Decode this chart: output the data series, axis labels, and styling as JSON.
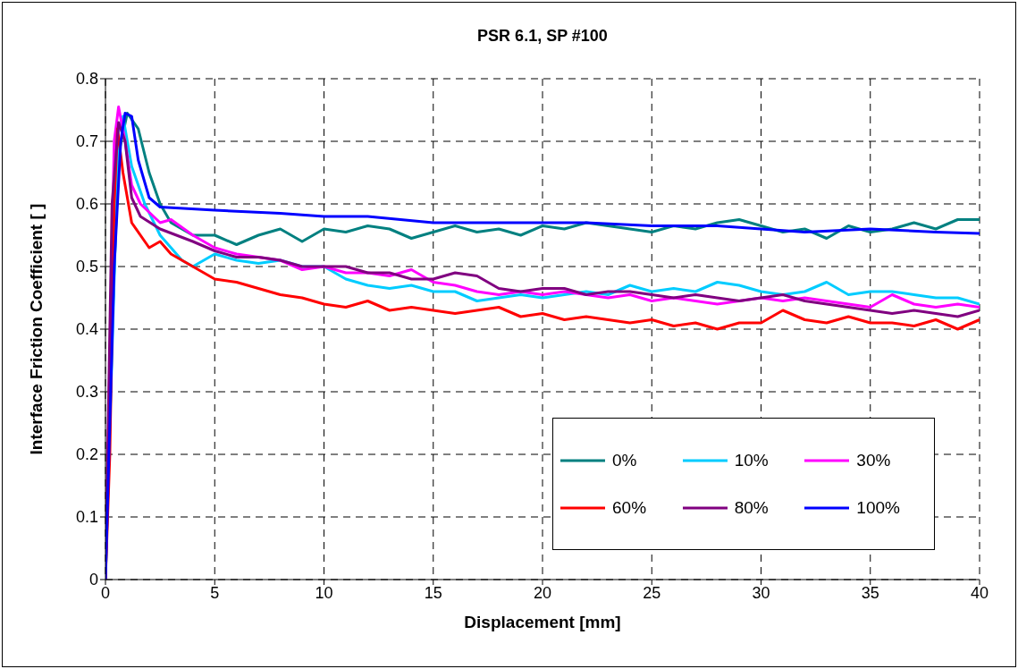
{
  "chart_data": {
    "type": "line",
    "title": "PSR 6.1, SP #100",
    "xlabel": "Displacement [mm]",
    "ylabel": "Interface Friction Coefficient [ ]",
    "xlim": [
      0,
      40
    ],
    "xticks": [
      0,
      5,
      10,
      15,
      20,
      25,
      30,
      35,
      40
    ],
    "ylim": [
      0,
      0.8
    ],
    "yticks": [
      0,
      0.1,
      0.2,
      0.3,
      0.4,
      0.5,
      0.6,
      0.7,
      0.8
    ],
    "grid": true,
    "legend": "bottom right",
    "marker": "none",
    "line_style": "solid",
    "series": [
      {
        "name": "0%",
        "color": "#008080",
        "x": [
          0,
          0.3,
          0.6,
          1.0,
          1.5,
          2,
          2.5,
          3,
          4,
          5,
          6,
          7,
          8,
          9,
          10,
          11,
          12,
          13,
          14,
          15,
          16,
          17,
          18,
          19,
          20,
          21,
          22,
          23,
          24,
          25,
          26,
          27,
          28,
          29,
          30,
          31,
          32,
          33,
          34,
          35,
          36,
          37,
          38,
          39,
          40
        ],
        "values": [
          0,
          0.4,
          0.68,
          0.745,
          0.72,
          0.65,
          0.6,
          0.57,
          0.55,
          0.55,
          0.535,
          0.55,
          0.56,
          0.54,
          0.56,
          0.555,
          0.565,
          0.56,
          0.545,
          0.555,
          0.565,
          0.555,
          0.56,
          0.55,
          0.565,
          0.56,
          0.57,
          0.565,
          0.56,
          0.555,
          0.565,
          0.56,
          0.57,
          0.575,
          0.565,
          0.555,
          0.56,
          0.545,
          0.565,
          0.555,
          0.56,
          0.57,
          0.56,
          0.575,
          0.575
        ]
      },
      {
        "name": "10%",
        "color": "#00ccff",
        "x": [
          0,
          0.6,
          0.8,
          1.2,
          1.8,
          2.5,
          3.5,
          4,
          5,
          6,
          7,
          8,
          9,
          10,
          11,
          12,
          13,
          14,
          15,
          16,
          17,
          18,
          19,
          20,
          21,
          22,
          23,
          24,
          25,
          26,
          27,
          28,
          29,
          30,
          31,
          32,
          33,
          34,
          35,
          36,
          37,
          38,
          39,
          40
        ],
        "values": [
          0,
          0.72,
          0.74,
          0.66,
          0.6,
          0.55,
          0.51,
          0.5,
          0.52,
          0.51,
          0.505,
          0.51,
          0.5,
          0.5,
          0.48,
          0.47,
          0.465,
          0.47,
          0.46,
          0.46,
          0.445,
          0.45,
          0.455,
          0.45,
          0.455,
          0.46,
          0.455,
          0.47,
          0.46,
          0.465,
          0.46,
          0.475,
          0.47,
          0.46,
          0.455,
          0.46,
          0.475,
          0.455,
          0.46,
          0.46,
          0.455,
          0.45,
          0.45,
          0.44
        ]
      },
      {
        "name": "30%",
        "color": "#ff00ff",
        "x": [
          0,
          0.4,
          0.6,
          0.9,
          1.2,
          1.6,
          2.5,
          3,
          4,
          5,
          6,
          7,
          8,
          9,
          10,
          11,
          12,
          13,
          14,
          15,
          16,
          17,
          18,
          19,
          20,
          21,
          22,
          23,
          24,
          25,
          26,
          27,
          28,
          29,
          30,
          31,
          32,
          33,
          34,
          35,
          36,
          37,
          38,
          39,
          40
        ],
        "values": [
          0,
          0.7,
          0.755,
          0.7,
          0.63,
          0.6,
          0.57,
          0.575,
          0.55,
          0.53,
          0.52,
          0.515,
          0.51,
          0.495,
          0.5,
          0.49,
          0.49,
          0.485,
          0.495,
          0.475,
          0.47,
          0.46,
          0.455,
          0.46,
          0.455,
          0.46,
          0.455,
          0.45,
          0.455,
          0.445,
          0.45,
          0.445,
          0.44,
          0.445,
          0.45,
          0.445,
          0.45,
          0.445,
          0.44,
          0.435,
          0.455,
          0.44,
          0.435,
          0.44,
          0.435
        ]
      },
      {
        "name": "60%",
        "color": "#ff0000",
        "x": [
          0,
          0.2,
          0.4,
          0.55,
          0.8,
          1.2,
          1.8,
          2,
          2.5,
          3,
          4,
          5,
          6,
          7,
          8,
          9,
          10,
          11,
          12,
          13,
          14,
          15,
          16,
          17,
          18,
          19,
          20,
          21,
          22,
          23,
          24,
          25,
          26,
          27,
          28,
          29,
          30,
          31,
          32,
          33,
          34,
          35,
          36,
          37,
          38,
          39,
          40
        ],
        "values": [
          0,
          0.2,
          0.6,
          0.72,
          0.65,
          0.57,
          0.54,
          0.53,
          0.54,
          0.52,
          0.5,
          0.48,
          0.475,
          0.465,
          0.455,
          0.45,
          0.44,
          0.435,
          0.445,
          0.43,
          0.435,
          0.43,
          0.425,
          0.43,
          0.435,
          0.42,
          0.425,
          0.415,
          0.42,
          0.415,
          0.41,
          0.415,
          0.405,
          0.41,
          0.4,
          0.41,
          0.41,
          0.43,
          0.415,
          0.41,
          0.42,
          0.41,
          0.41,
          0.405,
          0.415,
          0.4,
          0.415
        ]
      },
      {
        "name": "80%",
        "color": "#800080",
        "x": [
          0,
          0.3,
          0.6,
          0.9,
          1.2,
          1.6,
          2.5,
          4,
          5,
          6,
          7,
          8,
          9,
          10,
          11,
          12,
          13,
          14,
          15,
          16,
          17,
          18,
          19,
          20,
          21,
          22,
          23,
          24,
          25,
          26,
          27,
          28,
          29,
          30,
          31,
          32,
          33,
          34,
          35,
          36,
          37,
          38,
          39,
          40
        ],
        "values": [
          0,
          0.6,
          0.73,
          0.7,
          0.61,
          0.58,
          0.56,
          0.54,
          0.525,
          0.515,
          0.515,
          0.51,
          0.5,
          0.5,
          0.5,
          0.49,
          0.49,
          0.48,
          0.48,
          0.49,
          0.485,
          0.465,
          0.46,
          0.465,
          0.465,
          0.455,
          0.46,
          0.46,
          0.455,
          0.45,
          0.455,
          0.45,
          0.445,
          0.45,
          0.455,
          0.445,
          0.44,
          0.435,
          0.43,
          0.425,
          0.43,
          0.425,
          0.42,
          0.43
        ]
      },
      {
        "name": "100%",
        "color": "#0000ff",
        "x": [
          0,
          0.4,
          0.7,
          0.9,
          1.2,
          1.5,
          2,
          2.5,
          5,
          8,
          10,
          12,
          15,
          18,
          20,
          22,
          25,
          28,
          30,
          32,
          35,
          38,
          40
        ],
        "values": [
          0,
          0.5,
          0.7,
          0.745,
          0.74,
          0.67,
          0.61,
          0.595,
          0.59,
          0.585,
          0.58,
          0.58,
          0.57,
          0.57,
          0.57,
          0.57,
          0.565,
          0.565,
          0.56,
          0.555,
          0.56,
          0.555,
          0.553
        ]
      }
    ]
  }
}
